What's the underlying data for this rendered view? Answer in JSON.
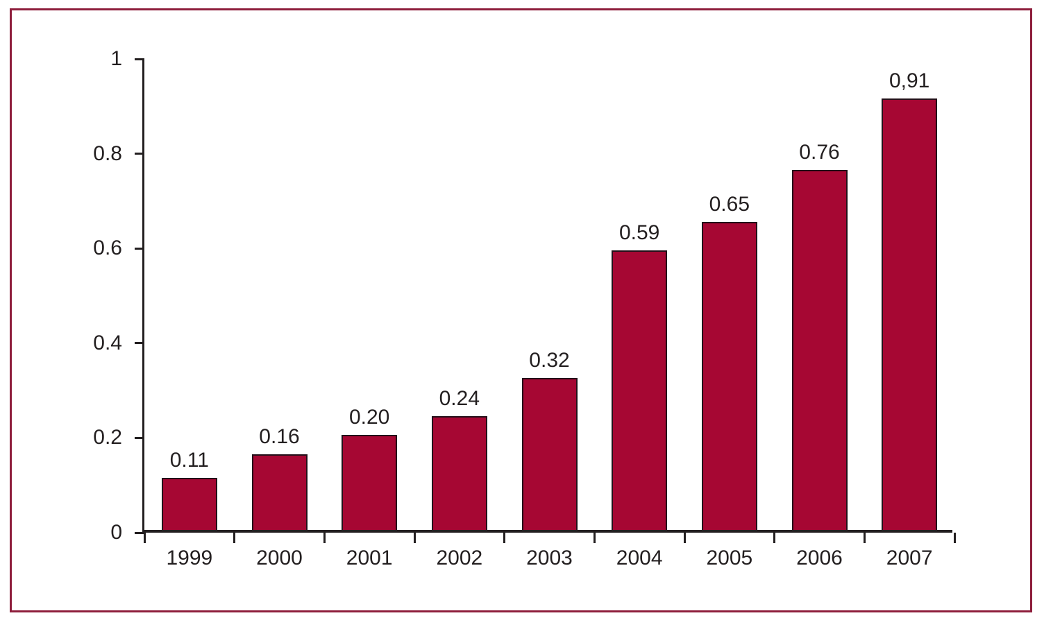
{
  "chart_data": {
    "type": "bar",
    "title": "",
    "xlabel": "",
    "ylabel": "",
    "categories": [
      "1999",
      "2000",
      "2001",
      "2002",
      "2003",
      "2004",
      "2005",
      "2006",
      "2007"
    ],
    "values": [
      0.11,
      0.16,
      0.2,
      0.24,
      0.32,
      0.59,
      0.65,
      0.76,
      0.91
    ],
    "value_labels": [
      "0.11",
      "0.16",
      "0.20",
      "0.24",
      "0.32",
      "0.59",
      "0.65",
      "0.76",
      "0,91"
    ],
    "ylim": [
      0,
      1
    ],
    "yticks": [
      0,
      0.2,
      0.4,
      0.6,
      0.8,
      1
    ],
    "ytick_labels": [
      "0",
      "0.2",
      "0.4",
      "0.6",
      "0.8",
      "1"
    ],
    "grid": false,
    "legend": false,
    "bar_color": "#a60733",
    "bar_border_color": "#231019",
    "axis_color": "#231f20",
    "text_color": "#231f20",
    "frame_border_color": "#8e1e3c"
  }
}
